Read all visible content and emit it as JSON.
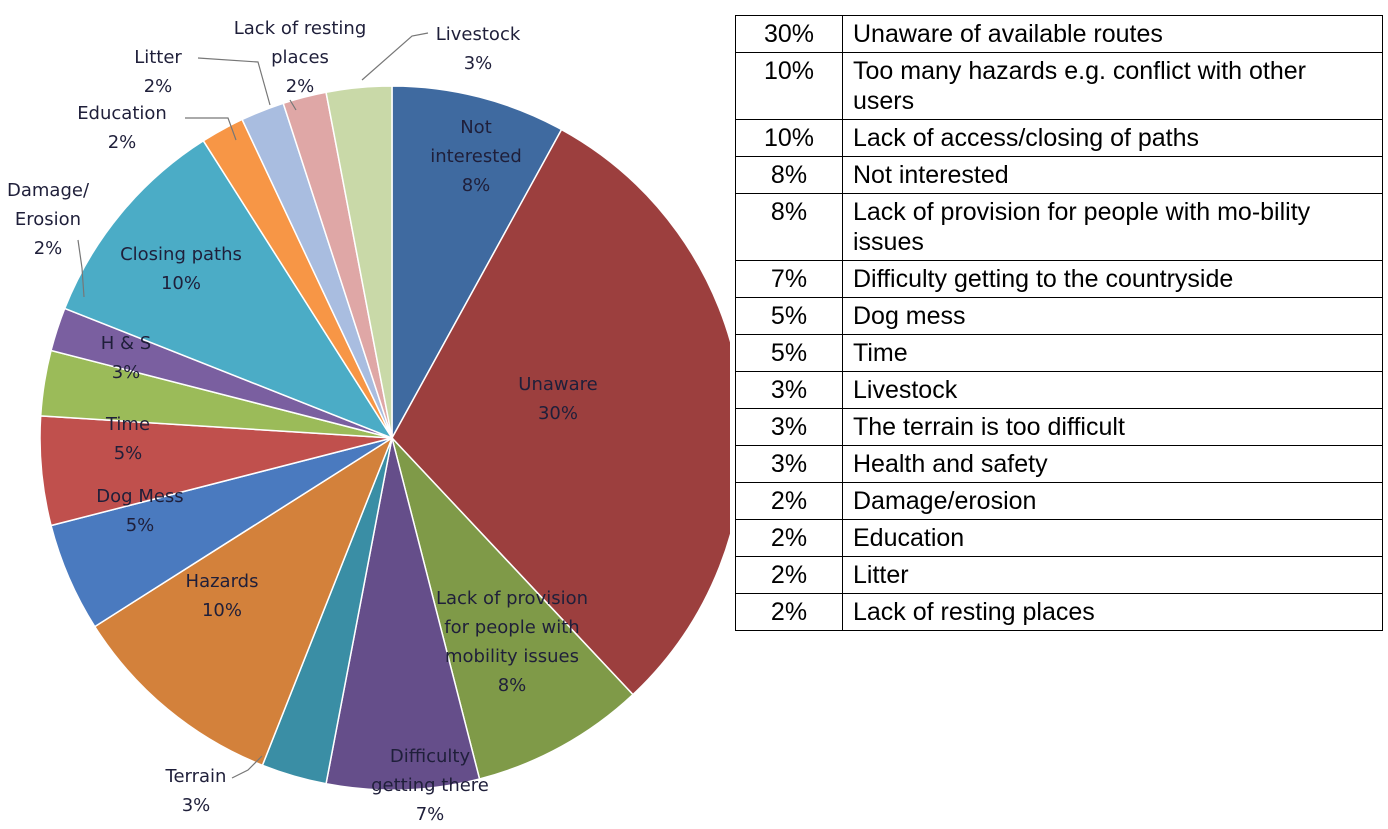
{
  "chart_data": {
    "type": "pie",
    "categories": [
      "Not interested",
      "Unaware",
      "Lack of provision for people with mobility issues",
      "Difficulty getting there",
      "Terrain",
      "Hazards",
      "Dog Mess",
      "Time",
      "H & S",
      "Damage/ Erosion",
      "Closing paths",
      "Education",
      "Litter",
      "Lack of resting places",
      "Livestock"
    ],
    "values": [
      8,
      30,
      8,
      7,
      3,
      10,
      5,
      5,
      3,
      2,
      10,
      2,
      2,
      2,
      3
    ],
    "value_labels": [
      "8%",
      "30%",
      "8%",
      "7%",
      "3%",
      "10%",
      "5%",
      "5%",
      "3%",
      "2%",
      "10%",
      "2%",
      "2%",
      "2%",
      "3%"
    ],
    "colors": [
      "#3f6aa0",
      "#9c3f3e",
      "#7f9a48",
      "#654e8a",
      "#3a8ea5",
      "#d3813b",
      "#4a7abf",
      "#c0504d",
      "#9bbb59",
      "#7a5fa0",
      "#4bacc6",
      "#f79646",
      "#a9bde0",
      "#dfa7a6",
      "#c9d9a8"
    ]
  },
  "table": {
    "rows": [
      [
        "30%",
        "Unaware of available routes"
      ],
      [
        "10%",
        "Too many hazards e.g. conflict with other users"
      ],
      [
        "10%",
        "Lack of access/closing of paths"
      ],
      [
        "8%",
        "Not interested"
      ],
      [
        "8%",
        "Lack of provision for people with mo-bility issues"
      ],
      [
        "7%",
        "Difficulty getting to the countryside"
      ],
      [
        "5%",
        "Dog mess"
      ],
      [
        "5%",
        "Time"
      ],
      [
        "3%",
        "Livestock"
      ],
      [
        "3%",
        "The terrain is too difficult"
      ],
      [
        "3%",
        "Health and safety"
      ],
      [
        "2%",
        "Damage/erosion"
      ],
      [
        "2%",
        "Education"
      ],
      [
        "2%",
        "Litter"
      ],
      [
        "2%",
        "Lack of resting places"
      ]
    ]
  }
}
